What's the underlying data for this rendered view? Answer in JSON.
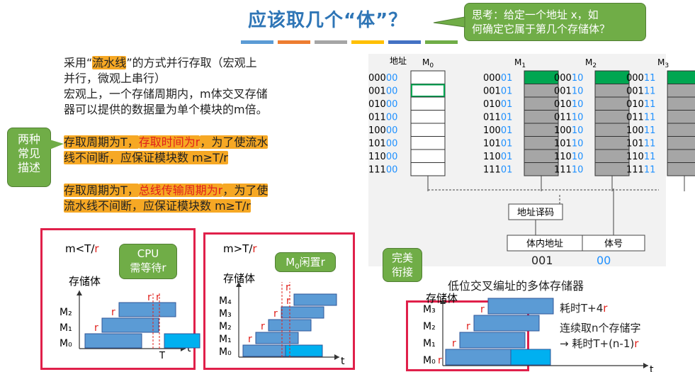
{
  "title": "应该取几个“体”？",
  "colors": {
    "accent_blue": "#2e75b6",
    "callout_green": "#70ad47",
    "highlight_orange": "#f6a824",
    "red": "#e0201b",
    "module_blue": "#5b9bd5",
    "filled_green": "#00a651"
  },
  "callouts": {
    "think_line1": "思考：给定一个地址 x，如",
    "think_line2": "何确定它属于第几个存储体？",
    "two_methods_line1": "两种",
    "two_methods_line2": "常见",
    "two_methods_line3": "描述",
    "cpu_wait_line1": "CPU",
    "cpu_wait_line2": "需等待r",
    "m0_idle": "闲置r",
    "perfect_line1": "完美",
    "perfect_line2": "衔接"
  },
  "intro": {
    "line1_a": "采用“",
    "line1_hl": "流水线",
    "line1_b": "”的方式并行存取（宏观上",
    "line2": "并行，微观上串行）",
    "line3": "宏观上，一个存储周期内，m体交叉存储",
    "line4": "器可以提供的数据量为单个模块的m倍。"
  },
  "desc1": {
    "a": "存取周期为T，",
    "b": "存取时间为r",
    "c": "，为了使流水",
    "d": "线不间断，应保证模块数 m≥T/r"
  },
  "desc2": {
    "a": "存取周期为T，",
    "b": "总线传输周期为r",
    "c": "，为了使",
    "d": "流水线不间断，应保证模块数 m≥T/r"
  },
  "memory_diagram": {
    "addr_label": "地址",
    "module_labels": [
      "M",
      "M",
      "M",
      "M"
    ],
    "module_subs": [
      "0",
      "1",
      "2",
      "3"
    ],
    "addresses_high": [
      "000",
      "001",
      "010",
      "011",
      "100",
      "101",
      "110",
      "111"
    ],
    "suffixes": [
      "00",
      "01",
      "10",
      "11"
    ],
    "decoder": "地址译码",
    "in_body_addr": "体内地址",
    "body_no": "体号",
    "in_body_value": "001",
    "body_value": "00",
    "caption": "低位交叉编址的多体存储器"
  },
  "chart1": {
    "cond": "m<T/",
    "cond_r": "r",
    "ylabel": "存储体",
    "t": "t",
    "T": "T",
    "rows": [
      "M₂",
      "M₁",
      "M₀"
    ],
    "r": "r"
  },
  "chart2": {
    "cond": "m>T/",
    "cond_r": "r",
    "ylabel": "存储体",
    "t": "t",
    "rows": [
      "M₄",
      "M₃",
      "M₂",
      "M₁",
      "M₀"
    ],
    "r": "r"
  },
  "chart3": {
    "ylabel": "存储体",
    "t": "t",
    "rows": [
      "M₃",
      "M₂",
      "M₁",
      "M₀"
    ],
    "r": "r"
  },
  "timing": {
    "time_a": "耗时T+4",
    "time_a_r": "r",
    "read_n": "连续取n个存储字",
    "time_b": "→ 耗时T+(n-1)",
    "time_b_r": "r"
  }
}
